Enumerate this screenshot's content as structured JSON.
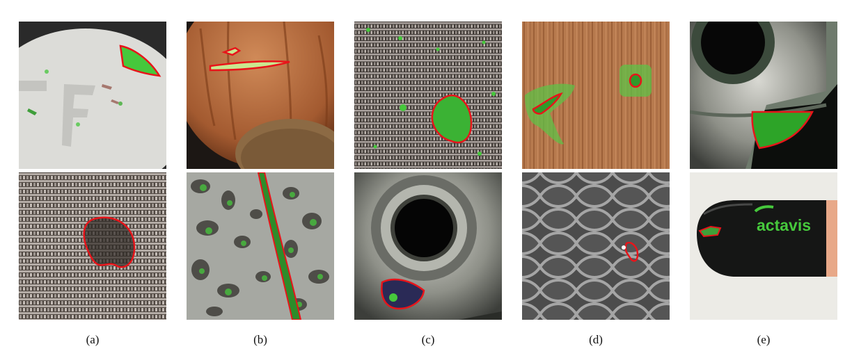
{
  "figure": {
    "columns": [
      {
        "caption": "(a)",
        "top_image": "pill-defect",
        "bottom_image": "carpet-hole"
      },
      {
        "caption": "(b)",
        "top_image": "hazelnut-crack",
        "bottom_image": "tile-crack"
      },
      {
        "caption": "(c)",
        "top_image": "carpet-contamination",
        "bottom_image": "metal-nut-stain"
      },
      {
        "caption": "(d)",
        "top_image": "wood-scratch",
        "bottom_image": "grid-bent-wire"
      },
      {
        "caption": "(e)",
        "top_image": "metal-nut-flip",
        "bottom_image": "capsule-print"
      }
    ],
    "logo_text": "actavis",
    "colors": {
      "boundary": "#e8141a",
      "heatmap": "#46c83c",
      "background": "#ffffff"
    }
  }
}
